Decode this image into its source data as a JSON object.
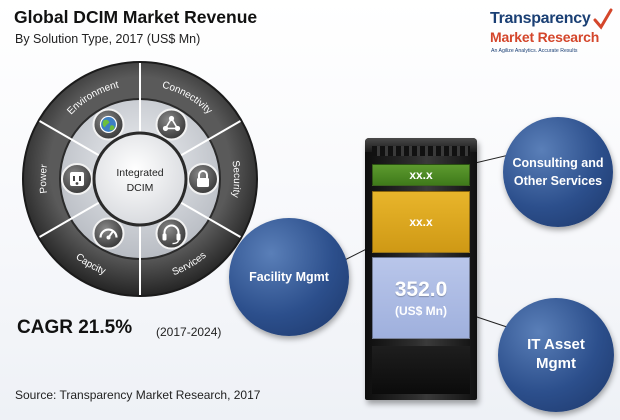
{
  "header": {
    "title": "Global DCIM Market Revenue",
    "subtitle": "By Solution Type, 2017 (US$ Mn)"
  },
  "logo": {
    "line1": "Transparency",
    "line2": "Market Research",
    "tagline": "An Agilize Analytics. Accurate Results"
  },
  "wheel": {
    "center": [
      "Integrated",
      "DCIM"
    ],
    "segments": [
      {
        "label": "Connectivity",
        "icon": "network-icon"
      },
      {
        "label": "Security",
        "icon": "padlock-icon"
      },
      {
        "label": "Services",
        "icon": "headset-icon"
      },
      {
        "label": "Capcity",
        "icon": "gauge-icon"
      },
      {
        "label": "Power",
        "icon": "power-outlet-icon"
      },
      {
        "label": "Environment",
        "icon": "globe-icon"
      }
    ],
    "colors": {
      "ring_outer": "#3b3b3b",
      "ring_inner": "#c9ccd1",
      "center": "#f3f3f3"
    }
  },
  "cagr": {
    "label": "CAGR 21.5%",
    "period": "(2017-2024)"
  },
  "source": "Source: Transparency Market Research, 2017",
  "chart_data": {
    "type": "bar",
    "title": "Global DCIM Market Revenue",
    "subtitle": "By Solution Type, 2017 (US$ Mn)",
    "categories": [
      "Consulting and Other Services",
      "Facility Mgmt",
      "IT Asset Mgmt"
    ],
    "values": [
      null,
      null,
      352.0
    ],
    "value_labels": [
      "xx.x",
      "xx.x",
      "352.0"
    ],
    "unit_label": "(US$ Mn)",
    "colors": [
      "#4f8a25",
      "#dca520",
      "#aebce4"
    ]
  },
  "callouts": {
    "consulting": [
      "Consulting and",
      "Other Services"
    ],
    "facility": "Facility Mgmt",
    "it_asset": [
      "IT Asset",
      "Mgmt"
    ]
  },
  "colors": {
    "bubble": "#2c4f8c",
    "brand_blue": "#1a3f74",
    "brand_red": "#d4462b"
  }
}
